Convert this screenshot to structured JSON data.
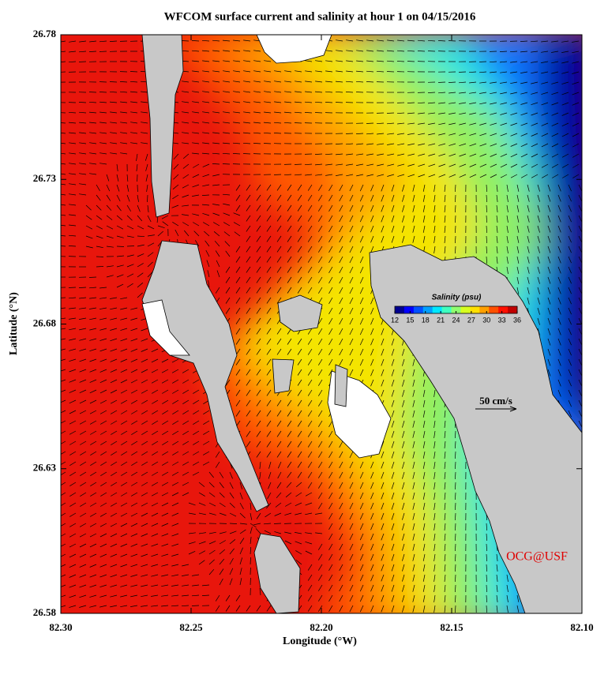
{
  "chart_data": {
    "type": "map",
    "title": "WFCOM surface current and salinity at hour 1 on 04/15/2016",
    "x_label": "Longitude (°W)",
    "y_label": "Latitude (°N)",
    "xlim": [
      82.3,
      82.1
    ],
    "ylim": [
      26.58,
      26.78
    ],
    "xticks": [
      {
        "value": 82.3,
        "label": "82.30"
      },
      82.25,
      {
        "value": 82.2,
        "label": "82.20"
      },
      82.15,
      {
        "value": 82.1,
        "label": "82.10"
      }
    ],
    "yticks": [
      26.58,
      26.63,
      26.68,
      26.73,
      26.78
    ],
    "colorbar": {
      "title": "Salinity (psu)",
      "clim": [
        12,
        36
      ],
      "ticks": [
        12,
        15,
        18,
        21,
        24,
        27,
        30,
        33,
        36
      ],
      "colormap": [
        "#00008f",
        "#0000ff",
        "#0050ff",
        "#00a0ff",
        "#00e8ff",
        "#40ffc0",
        "#90ff70",
        "#d8ff20",
        "#ffe000",
        "#ffa000",
        "#ff5000",
        "#ff1000",
        "#c00000"
      ]
    },
    "scale_label": "50 cm/s",
    "credit": "OCG@USF"
  }
}
